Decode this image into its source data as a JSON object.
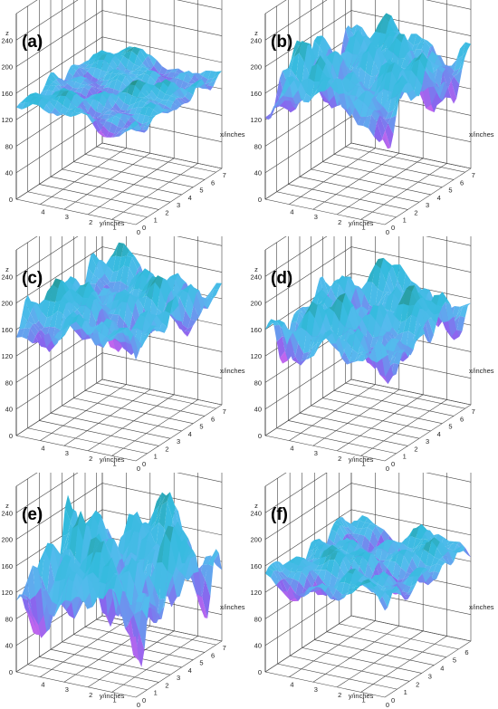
{
  "chart_data": [
    {
      "type": "surface",
      "panel_label": "(a)",
      "zlabel": "z",
      "xlabel": "x/inches",
      "ylabel": "y/inches",
      "z_ticks": [
        "0",
        "40",
        "80",
        "120",
        "160",
        "200",
        "240"
      ],
      "x_ticks": [
        "0",
        "1",
        "2",
        "3",
        "4",
        "5",
        "6",
        "7"
      ],
      "y_ticks": [
        "0",
        "1",
        "2",
        "3",
        "4"
      ],
      "xlim": [
        0,
        7.5
      ],
      "ylim": [
        0,
        5
      ],
      "zlim": [
        0,
        280
      ],
      "base_z": 140,
      "amplitude": 22,
      "seed": 1
    },
    {
      "type": "surface",
      "panel_label": "(b)",
      "zlabel": "z",
      "xlabel": "x/inches",
      "ylabel": "y/inches",
      "z_ticks": [
        "0",
        "40",
        "80",
        "120",
        "160",
        "200",
        "240"
      ],
      "x_ticks": [
        "0",
        "1",
        "2",
        "3",
        "4",
        "5",
        "6",
        "7"
      ],
      "y_ticks": [
        "0",
        "1",
        "2",
        "3",
        "4"
      ],
      "xlim": [
        0,
        7.5
      ],
      "ylim": [
        0,
        5
      ],
      "zlim": [
        0,
        280
      ],
      "base_z": 165,
      "amplitude": 55,
      "seed": 2
    },
    {
      "type": "surface",
      "panel_label": "(c)",
      "zlabel": "z",
      "xlabel": "x/inches",
      "ylabel": "y/inches",
      "z_ticks": [
        "0",
        "40",
        "80",
        "120",
        "160",
        "200",
        "240"
      ],
      "x_ticks": [
        "0",
        "1",
        "2",
        "3",
        "4",
        "5",
        "6",
        "7"
      ],
      "y_ticks": [
        "0",
        "1",
        "2",
        "3",
        "4"
      ],
      "xlim": [
        0,
        7.5
      ],
      "ylim": [
        0,
        5
      ],
      "zlim": [
        0,
        280
      ],
      "base_z": 170,
      "amplitude": 45,
      "seed": 3
    },
    {
      "type": "surface",
      "panel_label": "(d)",
      "zlabel": "z",
      "xlabel": "x/inches",
      "ylabel": "y/inches",
      "z_ticks": [
        "0",
        "40",
        "80",
        "120",
        "160",
        "200",
        "240"
      ],
      "x_ticks": [
        "0",
        "1",
        "2",
        "3",
        "4",
        "5",
        "6",
        "7"
      ],
      "y_ticks": [
        "0",
        "1",
        "2",
        "3",
        "4"
      ],
      "xlim": [
        0,
        7.5
      ],
      "ylim": [
        0,
        5
      ],
      "zlim": [
        0,
        280
      ],
      "base_z": 150,
      "amplitude": 50,
      "seed": 4
    },
    {
      "type": "surface",
      "panel_label": "(e)",
      "zlabel": "z",
      "xlabel": "x/inches",
      "ylabel": "y/inches",
      "z_ticks": [
        "0",
        "40",
        "80",
        "120",
        "160",
        "200",
        "240"
      ],
      "x_ticks": [
        "0",
        "1",
        "2",
        "3",
        "4",
        "5",
        "6",
        "7"
      ],
      "y_ticks": [
        "0",
        "1",
        "2",
        "3",
        "4"
      ],
      "xlim": [
        0,
        7.5
      ],
      "ylim": [
        0,
        5
      ],
      "zlim": [
        0,
        280
      ],
      "base_z": 130,
      "amplitude": 85,
      "seed": 5
    },
    {
      "type": "surface",
      "panel_label": "(f)",
      "zlabel": "z",
      "xlabel": "x/inches",
      "ylabel": "y/inches",
      "z_ticks": [
        "0",
        "40",
        "80",
        "120",
        "160",
        "200",
        "240"
      ],
      "x_ticks": [
        "0",
        "1",
        "2",
        "3",
        "4",
        "5",
        "6"
      ],
      "y_ticks": [
        "0",
        "1",
        "2",
        "3",
        "4"
      ],
      "xlim": [
        0,
        7
      ],
      "ylim": [
        0,
        5
      ],
      "zlim": [
        0,
        280
      ],
      "base_z": 140,
      "amplitude": 30,
      "seed": 6
    }
  ],
  "colors": {
    "low": "#ee66ee",
    "mid_low": "#8866ee",
    "mid": "#55bbee",
    "high": "#33bbdd",
    "peak": "#228877",
    "grid": "#444444"
  }
}
